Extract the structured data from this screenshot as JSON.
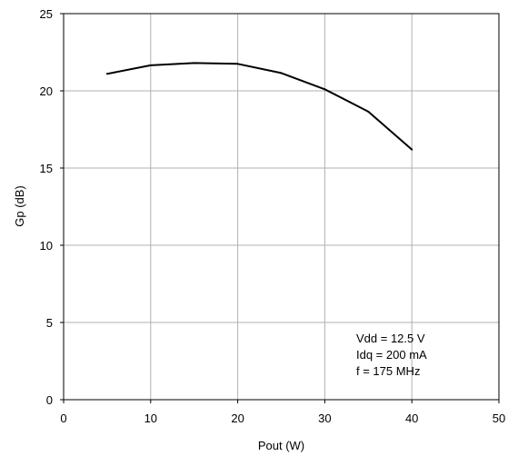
{
  "chart_data": {
    "type": "line",
    "title": "",
    "xlabel": "Pout (W)",
    "ylabel": "Gp (dB)",
    "xlim": [
      0,
      50
    ],
    "ylim": [
      0,
      25
    ],
    "xticks": [
      "0",
      "10",
      "20",
      "30",
      "40",
      "50"
    ],
    "yticks": [
      "0",
      "5",
      "10",
      "15",
      "20",
      "25"
    ],
    "grid": true,
    "series": [
      {
        "x": [
          5,
          10,
          15,
          20,
          25,
          30,
          35,
          40
        ],
        "values": [
          21.1,
          21.65,
          21.8,
          21.75,
          21.15,
          20.1,
          18.65,
          16.2
        ]
      }
    ],
    "annotations": [
      "Vdd = 12.5 V",
      "Idq = 200 mA",
      "f = 175 MHz"
    ],
    "colors": {
      "line": "#000000",
      "grid": "#b0b0b0"
    }
  }
}
